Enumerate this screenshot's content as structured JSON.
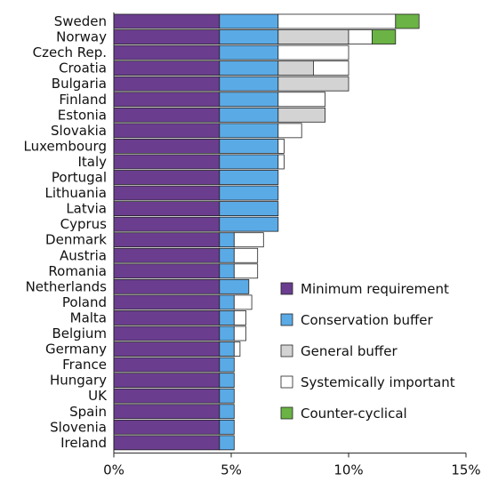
{
  "chart_data": {
    "type": "bar",
    "orientation": "horizontal",
    "stacked": true,
    "title": "",
    "xlabel": "",
    "ylabel": "",
    "xlim": [
      0,
      15
    ],
    "x_ticks": [
      "0%",
      "5%",
      "10%",
      "15%"
    ],
    "x_tick_values": [
      0,
      5,
      10,
      15
    ],
    "grid": false,
    "legend_position": "right",
    "categories": [
      "Sweden",
      "Norway",
      "Czech Rep.",
      "Croatia",
      "Bulgaria",
      "Finland",
      "Estonia",
      "Slovakia",
      "Luxembourg",
      "Italy",
      "Portugal",
      "Lithuania",
      "Latvia",
      "Cyprus",
      "Denmark",
      "Austria",
      "Romania",
      "Netherlands",
      "Poland",
      "Malta",
      "Belgium",
      "Germany",
      "France",
      "Hungary",
      "UK",
      "Spain",
      "Slovenia",
      "Ireland"
    ],
    "series": [
      {
        "name": "Minimum requirement",
        "color": "#6a3d8f",
        "values": [
          4.5,
          4.5,
          4.5,
          4.5,
          4.5,
          4.5,
          4.5,
          4.5,
          4.5,
          4.5,
          4.5,
          4.5,
          4.5,
          4.5,
          4.5,
          4.5,
          4.5,
          4.5,
          4.5,
          4.5,
          4.5,
          4.5,
          4.5,
          4.5,
          4.5,
          4.5,
          4.5,
          4.5
        ]
      },
      {
        "name": "Conservation buffer",
        "color": "#5aaae6",
        "values": [
          2.5,
          2.5,
          2.5,
          2.5,
          2.5,
          2.5,
          2.5,
          2.5,
          2.5,
          2.5,
          2.5,
          2.5,
          2.5,
          2.5,
          0.625,
          0.625,
          0.625,
          1.25,
          0.625,
          0.625,
          0.625,
          0.625,
          0.625,
          0.625,
          0.625,
          0.625,
          0.625,
          0.625
        ]
      },
      {
        "name": "General buffer",
        "color": "#d3d3d3",
        "values": [
          0,
          3,
          0,
          1.5,
          3,
          0,
          2,
          0,
          0,
          0,
          0,
          0,
          0,
          0,
          0,
          0,
          0,
          0,
          0,
          0,
          0,
          0,
          0,
          0,
          0,
          0,
          0,
          0
        ]
      },
      {
        "name": "Systemically important",
        "color": "#ffffff",
        "values": [
          5,
          1,
          3,
          1.5,
          0,
          2,
          0,
          1,
          0.25,
          0.25,
          0,
          0,
          0,
          0,
          1.25,
          1,
          1,
          0,
          0.75,
          0.5,
          0.5,
          0.25,
          0,
          0,
          0,
          0,
          0,
          0
        ]
      },
      {
        "name": "Counter-cyclical",
        "color": "#6ab344",
        "values": [
          1,
          1,
          0,
          0,
          0,
          0,
          0,
          0,
          0,
          0,
          0,
          0,
          0,
          0,
          0,
          0,
          0,
          0,
          0,
          0,
          0,
          0,
          0,
          0,
          0,
          0,
          0,
          0
        ]
      }
    ]
  }
}
